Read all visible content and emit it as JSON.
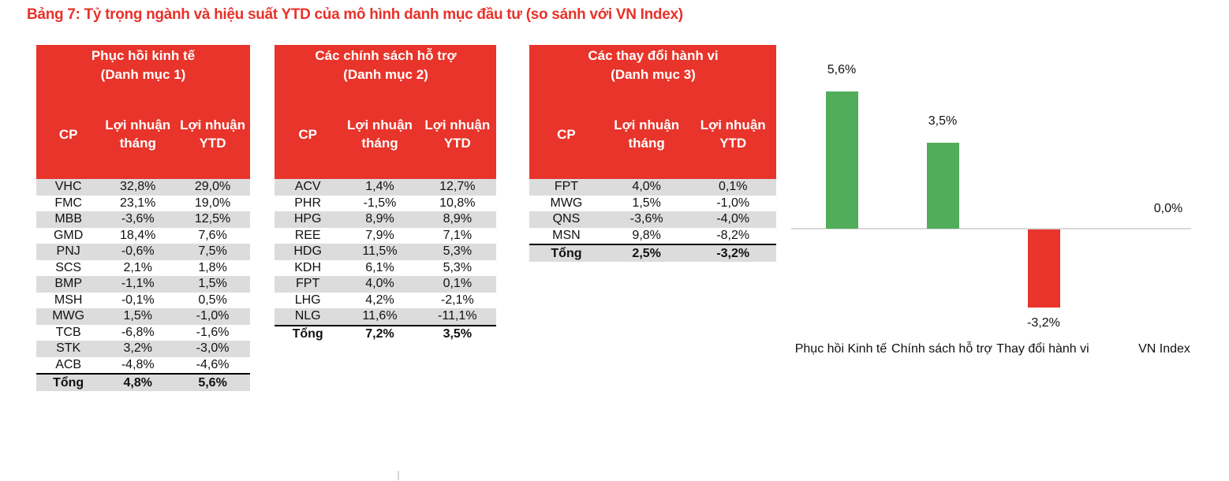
{
  "title": "Bảng 7: Tỷ trọng ngành và hiệu suất YTD của mô hình danh mục đầu tư (so sánh với VN Index)",
  "colors": {
    "header_red": "#e8342a",
    "row_shade": "#dcdcdc",
    "bar_positive": "#52ad5a",
    "bar_negative": "#e8342a",
    "title": "#e8322a"
  },
  "portfolios": [
    {
      "title_line1": "Phục hồi kinh tế",
      "title_line2": "(Danh mục 1)",
      "col_cp": "CP",
      "col_month": "Lợi nhuận tháng",
      "col_ytd": "Lợi nhuận YTD",
      "rows": [
        {
          "cp": "VHC",
          "month": "32,8%",
          "ytd": "29,0%"
        },
        {
          "cp": "FMC",
          "month": "23,1%",
          "ytd": "19,0%"
        },
        {
          "cp": "MBB",
          "month": "-3,6%",
          "ytd": "12,5%"
        },
        {
          "cp": "GMD",
          "month": "18,4%",
          "ytd": "7,6%"
        },
        {
          "cp": "PNJ",
          "month": "-0,6%",
          "ytd": "7,5%"
        },
        {
          "cp": "SCS",
          "month": "2,1%",
          "ytd": "1,8%"
        },
        {
          "cp": "BMP",
          "month": "-1,1%",
          "ytd": "1,5%"
        },
        {
          "cp": "MSH",
          "month": "-0,1%",
          "ytd": "0,5%"
        },
        {
          "cp": "MWG",
          "month": "1,5%",
          "ytd": "-1,0%"
        },
        {
          "cp": "TCB",
          "month": "-6,8%",
          "ytd": "-1,6%"
        },
        {
          "cp": "STK",
          "month": "3,2%",
          "ytd": "-3,0%"
        },
        {
          "cp": "ACB",
          "month": "-4,8%",
          "ytd": "-4,6%"
        }
      ],
      "total": {
        "cp": "Tổng",
        "month": "4,8%",
        "ytd": "5,6%"
      }
    },
    {
      "title_line1": "Các chính sách hỗ trợ",
      "title_line2": "(Danh mục 2)",
      "col_cp": "CP",
      "col_month": "Lợi nhuận tháng",
      "col_ytd": "Lợi nhuận YTD",
      "rows": [
        {
          "cp": "ACV",
          "month": "1,4%",
          "ytd": "12,7%"
        },
        {
          "cp": "PHR",
          "month": "-1,5%",
          "ytd": "10,8%"
        },
        {
          "cp": "HPG",
          "month": "8,9%",
          "ytd": "8,9%"
        },
        {
          "cp": "REE",
          "month": "7,9%",
          "ytd": "7,1%"
        },
        {
          "cp": "HDG",
          "month": "11,5%",
          "ytd": "5,3%"
        },
        {
          "cp": "KDH",
          "month": "6,1%",
          "ytd": "5,3%"
        },
        {
          "cp": "FPT",
          "month": "4,0%",
          "ytd": "0,1%"
        },
        {
          "cp": "LHG",
          "month": "4,2%",
          "ytd": "-2,1%"
        },
        {
          "cp": "NLG",
          "month": "11,6%",
          "ytd": "-11,1%"
        }
      ],
      "total": {
        "cp": "Tổng",
        "month": "7,2%",
        "ytd": "3,5%"
      }
    },
    {
      "title_line1": "Các thay đổi hành vi",
      "title_line2": "(Danh mục 3)",
      "col_cp": "CP",
      "col_month": "Lợi nhuận tháng",
      "col_ytd": "Lợi nhuận YTD",
      "rows": [
        {
          "cp": "FPT",
          "month": "4,0%",
          "ytd": "0,1%"
        },
        {
          "cp": "MWG",
          "month": "1,5%",
          "ytd": "-1,0%"
        },
        {
          "cp": "QNS",
          "month": "-3,6%",
          "ytd": "-4,0%"
        },
        {
          "cp": "MSN",
          "month": "9,8%",
          "ytd": "-8,2%"
        }
      ],
      "total": {
        "cp": "Tổng",
        "month": "2,5%",
        "ytd": "-3,2%"
      }
    }
  ],
  "chart_data": {
    "type": "bar",
    "title": "",
    "categories": [
      "Phục hồi Kinh tế",
      "Chính sách hỗ trợ",
      "Thay đổi hành vi",
      "VN Index"
    ],
    "values": [
      5.6,
      3.5,
      -3.2,
      0.0
    ],
    "value_labels": [
      "5,6%",
      "3,5%",
      "-3,2%",
      "0,0%"
    ],
    "bar_colors": [
      "#52ad5a",
      "#52ad5a",
      "#e8342a",
      "#52ad5a"
    ],
    "xlabel": "",
    "ylabel": "",
    "ylim": [
      -3.2,
      5.6
    ],
    "grid": false,
    "legend": "none",
    "axis_labels_visible": false
  }
}
